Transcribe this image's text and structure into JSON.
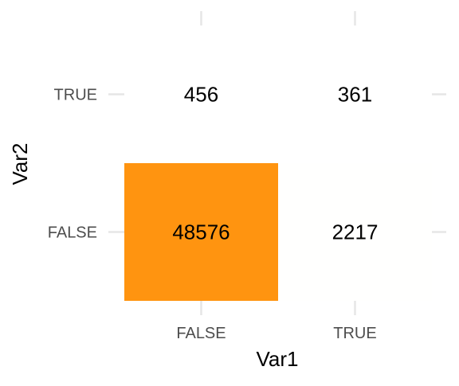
{
  "chart_data": {
    "type": "heatmap",
    "xlabel": "Var1",
    "ylabel": "Var2",
    "x_categories": [
      "FALSE",
      "TRUE"
    ],
    "y_categories": [
      "FALSE",
      "TRUE"
    ],
    "cells": [
      {
        "x": "FALSE",
        "y": "FALSE",
        "value": 48576,
        "label": "48576"
      },
      {
        "x": "TRUE",
        "y": "FALSE",
        "value": 2217,
        "label": "2217"
      },
      {
        "x": "FALSE",
        "y": "TRUE",
        "value": 456,
        "label": "456"
      },
      {
        "x": "TRUE",
        "y": "TRUE",
        "value": 361,
        "label": "361"
      }
    ],
    "color_scale": {
      "low": "#FFFFFF",
      "high": "#FF9410",
      "domain": [
        2000,
        48576
      ]
    },
    "grid": true,
    "legend": "none"
  }
}
